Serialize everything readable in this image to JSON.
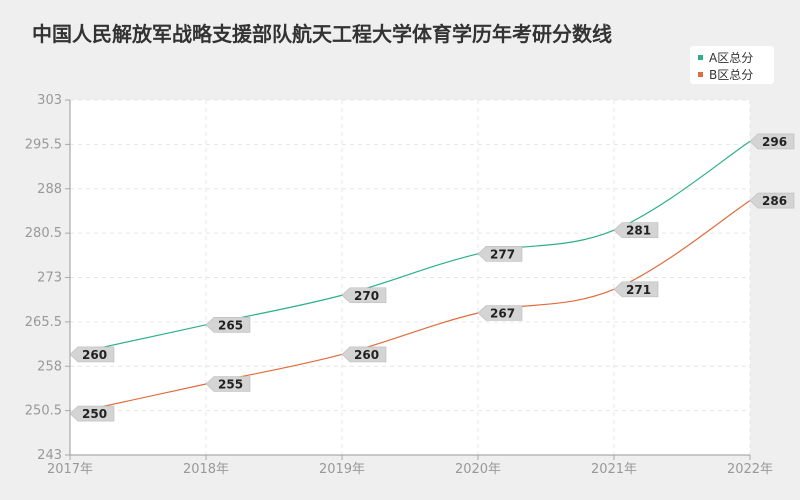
{
  "chart_data": {
    "type": "line",
    "title": "中国人民解放军战略支援部队航天工程大学体育学历年考研分数线",
    "x": [
      "2017年",
      "2018年",
      "2019年",
      "2020年",
      "2021年",
      "2022年"
    ],
    "series": [
      {
        "name": "A区总分",
        "values": [
          260,
          265,
          270,
          277,
          281,
          296
        ],
        "color": "#2bb08a"
      },
      {
        "name": "B区总分",
        "values": [
          250,
          255,
          260,
          267,
          271,
          286
        ],
        "color": "#e06c3c"
      }
    ],
    "ylim": [
      243,
      303
    ],
    "yticks": [
      "303",
      "295.5",
      "288",
      "280.5",
      "273",
      "265.5",
      "258",
      "250.5",
      "243"
    ],
    "grid": true,
    "legend": "top-right"
  }
}
